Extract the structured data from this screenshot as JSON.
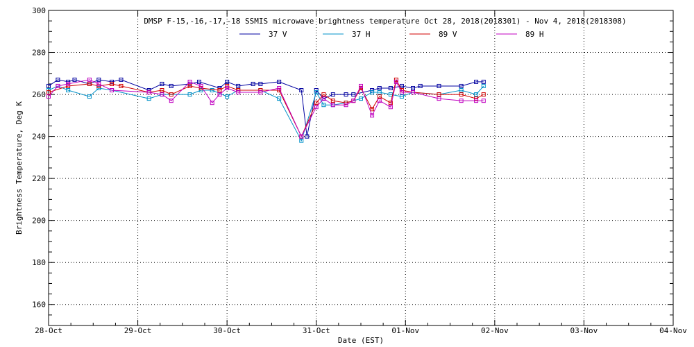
{
  "chart_data": {
    "type": "line",
    "title": "DMSP F-15,-16,-17,-18 SSMIS microwave brightness temperature Oct 28, 2018(2018301) - Nov  4, 2018(2018308)",
    "xlabel": "Date (EST)",
    "ylabel": "Brightness Temperature, Deg K",
    "ylim": [
      150,
      300
    ],
    "xlim": [
      "2018-10-28T00:00",
      "2018-11-04T00:00"
    ],
    "x_ticks": [
      "28-Oct",
      "29-Oct",
      "30-Oct",
      "31-Oct",
      "01-Nov",
      "02-Nov",
      "03-Nov",
      "04-Nov"
    ],
    "y_ticks": [
      160,
      180,
      200,
      220,
      240,
      260,
      280,
      300
    ],
    "grid": true,
    "legend_position": "top",
    "series": [
      {
        "name": "37 V",
        "color": "#0000a0",
        "x": [
          "2018-10-28T00:00",
          "2018-10-28T02:30",
          "2018-10-28T05:15",
          "2018-10-28T07:00",
          "2018-10-28T11:00",
          "2018-10-28T13:30",
          "2018-10-28T17:00",
          "2018-10-28T19:30",
          "2018-10-29T03:00",
          "2018-10-29T06:30",
          "2018-10-29T09:00",
          "2018-10-29T14:00",
          "2018-10-29T16:30",
          "2018-10-29T22:00",
          "2018-10-30T00:00",
          "2018-10-30T03:00",
          "2018-10-30T07:00",
          "2018-10-30T09:00",
          "2018-10-30T14:00",
          "2018-10-30T20:00",
          "2018-10-30T21:30",
          "2018-10-31T00:00",
          "2018-10-31T02:00",
          "2018-10-31T04:30",
          "2018-10-31T08:00",
          "2018-10-31T10:00",
          "2018-10-31T15:00",
          "2018-10-31T17:00",
          "2018-10-31T20:00",
          "2018-10-31T23:00",
          "2018-11-01T02:00",
          "2018-11-01T04:00",
          "2018-11-01T09:00",
          "2018-11-01T15:00",
          "2018-11-01T19:00",
          "2018-11-01T21:00"
        ],
        "values": [
          264,
          267,
          266,
          267,
          265,
          267,
          266,
          267,
          262,
          265,
          264,
          265,
          266,
          263,
          266,
          264,
          265,
          265,
          266,
          262,
          240,
          262,
          258,
          260,
          260,
          260,
          262,
          263,
          263,
          264,
          263,
          264,
          264,
          264,
          266,
          266
        ]
      },
      {
        "name": "37 H",
        "color": "#0090c8",
        "x": [
          "2018-10-28T00:00",
          "2018-10-28T02:30",
          "2018-10-28T05:15",
          "2018-10-28T11:00",
          "2018-10-28T13:30",
          "2018-10-28T17:00",
          "2018-10-29T03:00",
          "2018-10-29T06:30",
          "2018-10-29T14:00",
          "2018-10-29T17:00",
          "2018-10-29T20:00",
          "2018-10-30T00:00",
          "2018-10-30T03:00",
          "2018-10-30T09:00",
          "2018-10-30T14:00",
          "2018-10-30T20:00",
          "2018-10-31T00:00",
          "2018-10-31T02:00",
          "2018-10-31T04:30",
          "2018-10-31T08:00",
          "2018-10-31T12:00",
          "2018-10-31T15:00",
          "2018-10-31T17:00",
          "2018-10-31T20:00",
          "2018-10-31T23:00",
          "2018-11-01T02:00",
          "2018-11-01T09:00",
          "2018-11-01T15:00",
          "2018-11-01T19:00",
          "2018-11-01T21:00"
        ],
        "values": [
          262,
          264,
          262,
          259,
          263,
          262,
          258,
          260,
          260,
          262,
          262,
          259,
          262,
          262,
          258,
          238,
          261,
          255,
          255,
          256,
          258,
          261,
          261,
          260,
          259,
          261,
          260,
          262,
          260,
          264
        ]
      },
      {
        "name": "89 V",
        "color": "#d00000",
        "x": [
          "2018-10-28T00:00",
          "2018-10-28T05:15",
          "2018-10-28T11:00",
          "2018-10-28T13:30",
          "2018-10-28T17:00",
          "2018-10-28T19:30",
          "2018-10-29T03:00",
          "2018-10-29T06:30",
          "2018-10-29T09:00",
          "2018-10-29T14:00",
          "2018-10-29T17:00",
          "2018-10-29T22:00",
          "2018-10-30T00:00",
          "2018-10-30T03:00",
          "2018-10-30T09:00",
          "2018-10-30T14:00",
          "2018-10-30T20:00",
          "2018-10-31T00:00",
          "2018-10-31T02:00",
          "2018-10-31T04:30",
          "2018-10-31T08:00",
          "2018-10-31T10:00",
          "2018-10-31T12:00",
          "2018-10-31T15:00",
          "2018-10-31T17:00",
          "2018-10-31T20:00",
          "2018-10-31T21:30",
          "2018-10-31T23:00",
          "2018-11-01T02:00",
          "2018-11-01T09:00",
          "2018-11-01T15:00",
          "2018-11-01T19:00",
          "2018-11-01T21:00"
        ],
        "values": [
          261,
          264,
          265,
          264,
          265,
          264,
          261,
          262,
          260,
          264,
          263,
          262,
          264,
          262,
          262,
          262,
          240,
          256,
          260,
          257,
          256,
          257,
          263,
          253,
          259,
          256,
          267,
          262,
          261,
          260,
          260,
          258,
          260
        ]
      },
      {
        "name": "89 H",
        "color": "#c000c0",
        "x": [
          "2018-10-28T00:00",
          "2018-10-28T02:30",
          "2018-10-28T05:15",
          "2018-10-28T11:00",
          "2018-10-28T13:30",
          "2018-10-28T17:00",
          "2018-10-29T03:00",
          "2018-10-29T06:30",
          "2018-10-29T09:00",
          "2018-10-29T14:00",
          "2018-10-29T17:00",
          "2018-10-29T20:00",
          "2018-10-29T22:00",
          "2018-10-30T00:00",
          "2018-10-30T03:00",
          "2018-10-30T09:00",
          "2018-10-30T14:00",
          "2018-10-30T20:00",
          "2018-10-31T00:00",
          "2018-10-31T02:00",
          "2018-10-31T04:30",
          "2018-10-31T08:00",
          "2018-10-31T10:00",
          "2018-10-31T12:00",
          "2018-10-31T15:00",
          "2018-10-31T17:00",
          "2018-10-31T20:00",
          "2018-10-31T21:30",
          "2018-10-31T23:00",
          "2018-11-01T02:00",
          "2018-11-01T09:00",
          "2018-11-01T15:00",
          "2018-11-01T19:00",
          "2018-11-01T21:00"
        ],
        "values": [
          259,
          264,
          265,
          267,
          265,
          262,
          261,
          260,
          257,
          266,
          264,
          256,
          260,
          263,
          261,
          261,
          263,
          240,
          254,
          258,
          255,
          255,
          257,
          264,
          250,
          257,
          254,
          266,
          261,
          261,
          258,
          257,
          257,
          257
        ]
      }
    ]
  }
}
